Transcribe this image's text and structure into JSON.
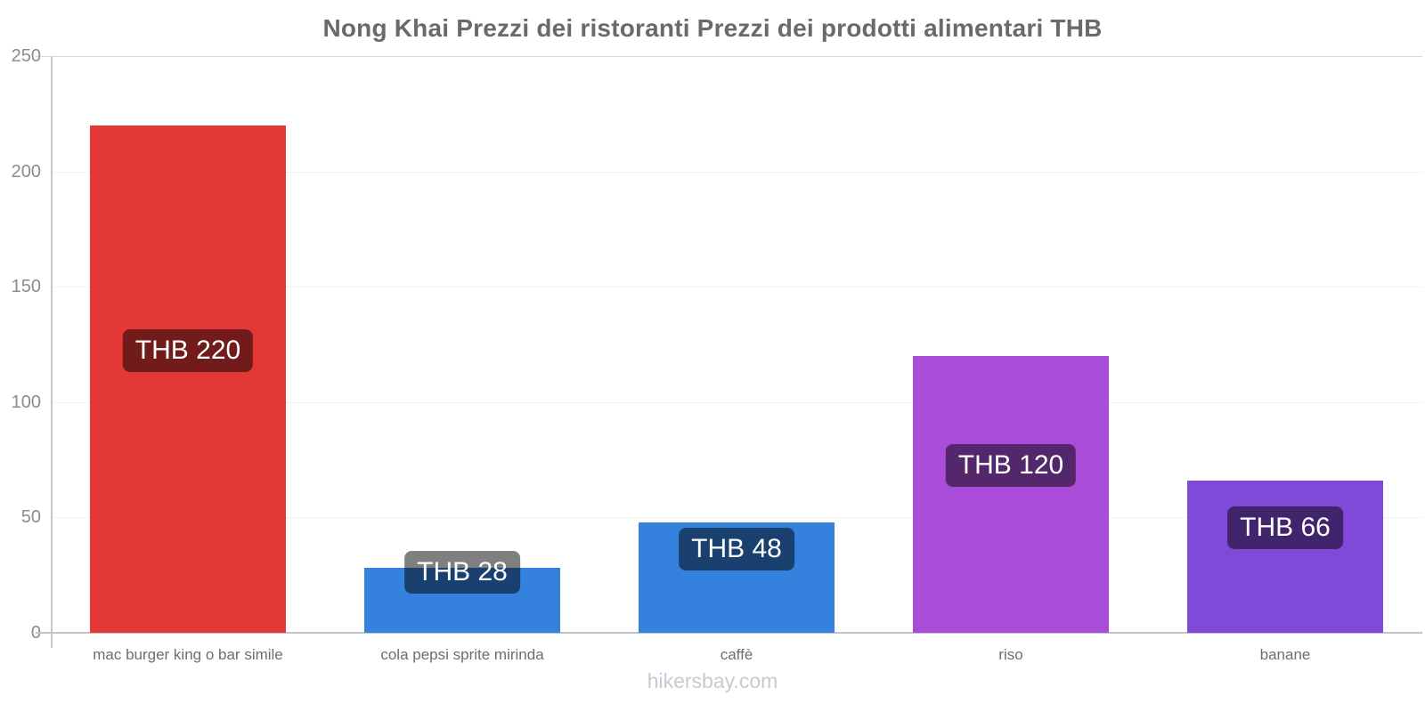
{
  "title": "Nong Khai Prezzi dei ristoranti Prezzi dei prodotti alimentari THB",
  "footer": "hikersbay.com",
  "chart_data": {
    "type": "bar",
    "title": "Nong Khai Prezzi dei ristoranti Prezzi dei prodotti alimentari THB",
    "currency": "THB",
    "categories": [
      "mac burger king o bar simile",
      "cola pepsi sprite mirinda",
      "caffè",
      "riso",
      "banane"
    ],
    "values": [
      220,
      28,
      48,
      120,
      66
    ],
    "bar_labels": [
      "THB 220",
      "THB 28",
      "THB 48",
      "THB 120",
      "THB 66"
    ],
    "bar_colors": [
      "#e33836",
      "#3581de",
      "#3581de",
      "#a94cd7",
      "#8049d8"
    ],
    "xlabel": "",
    "ylabel": "",
    "ylim": [
      0,
      250
    ],
    "yticks": [
      0,
      50,
      100,
      150,
      200,
      250
    ],
    "grid": true,
    "legend": false,
    "value_label_bg": "rgba(0,0,0,0.5)",
    "value_label_color": "#ffffff"
  }
}
